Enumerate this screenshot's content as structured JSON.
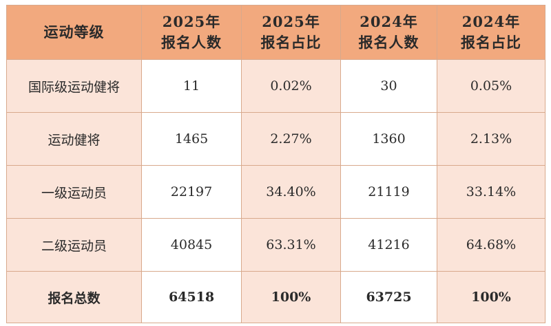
{
  "table": {
    "headers": [
      {
        "line1": "运动等级",
        "line2": ""
      },
      {
        "line1": "2025年",
        "line2": "报名人数"
      },
      {
        "line1": "2025年",
        "line2": "报名占比"
      },
      {
        "line1": "2024年",
        "line2": "报名人数"
      },
      {
        "line1": "2024年",
        "line2": "报名占比"
      }
    ],
    "rows": [
      {
        "level": "国际级运动健将",
        "count_2025": "11",
        "share_2025": "0.02%",
        "count_2024": "30",
        "share_2024": "0.05%"
      },
      {
        "level": "运动健将",
        "count_2025": "1465",
        "share_2025": "2.27%",
        "count_2024": "1360",
        "share_2024": "2.13%"
      },
      {
        "level": "一级运动员",
        "count_2025": "22197",
        "share_2025": "34.40%",
        "count_2024": "21119",
        "share_2024": "33.14%"
      },
      {
        "level": "二级运动员",
        "count_2025": "40845",
        "share_2025": "63.31%",
        "count_2024": "41216",
        "share_2024": "64.68%"
      }
    ],
    "total": {
      "level": "报名总数",
      "count_2025": "64518",
      "share_2025": "100%",
      "count_2024": "63725",
      "share_2024": "100%"
    },
    "colors": {
      "header_bg": "#f2a97e",
      "label_bg": "#fbe4d9",
      "border": "#d8a98c"
    }
  }
}
